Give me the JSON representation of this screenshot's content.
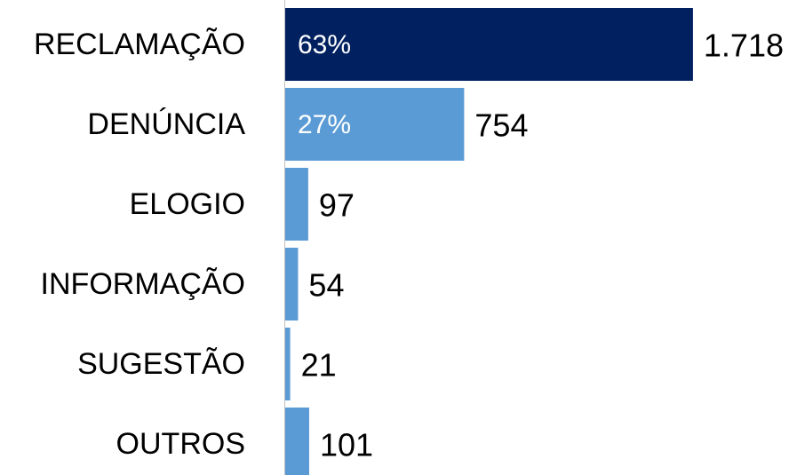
{
  "chart_data": {
    "type": "hbar",
    "categories": [
      "RECLAMAÇÃO",
      "DENÚNCIA",
      "ELOGIO",
      "INFORMAÇÃO",
      "SUGESTÃO",
      "OUTROS"
    ],
    "values": [
      1718,
      754,
      97,
      54,
      21,
      101
    ],
    "value_labels": [
      "1.718",
      "754",
      "97",
      "54",
      "21",
      "101"
    ],
    "shares": [
      {
        "value": 63,
        "label": "63%"
      },
      {
        "value": 27,
        "label": "27%"
      }
    ],
    "colors": [
      "#002060",
      "#5b9bd5",
      "#5b9bd5",
      "#5b9bd5",
      "#5b9bd5",
      "#5b9bd5"
    ],
    "xlim": [
      0,
      2190
    ]
  }
}
